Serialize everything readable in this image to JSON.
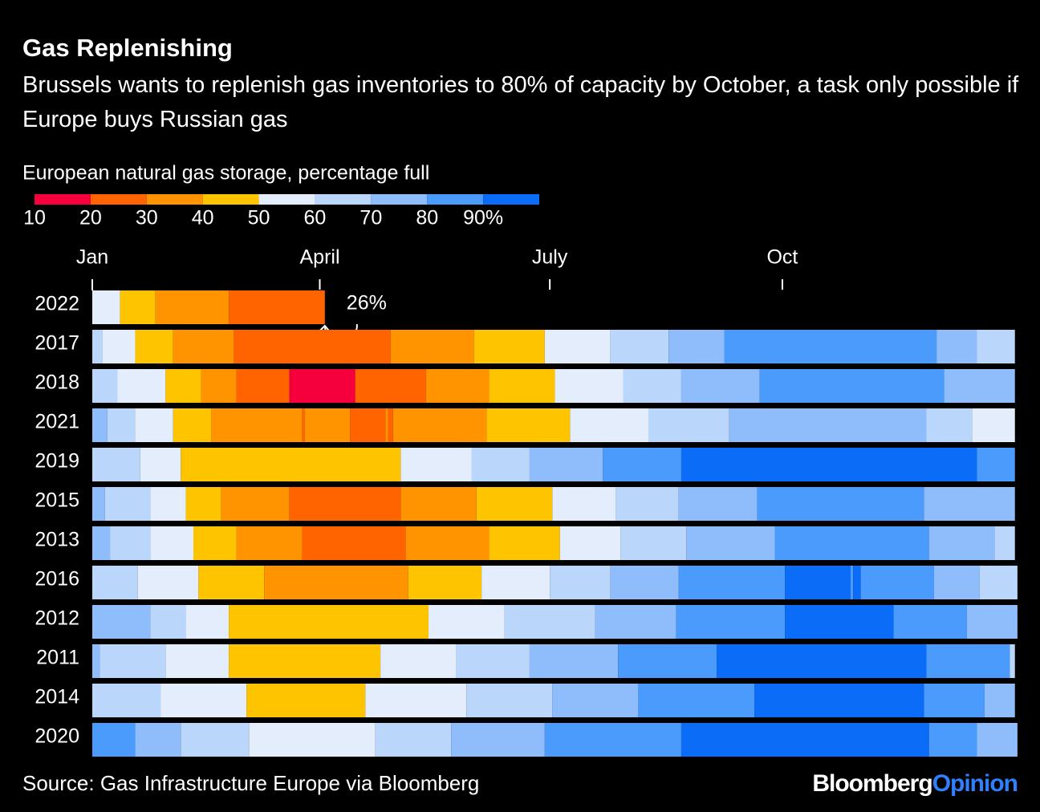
{
  "chart_data": {
    "type": "heatmap",
    "title": "Gas Replenishing",
    "subtitle": "Brussels wants to replenish gas inventories to 80% of capacity by October, a task only possible if Europe buys Russian gas",
    "legend_title": "European natural gas storage, percentage full",
    "color_lim": [
      10,
      100
    ],
    "color_ticks": [
      10,
      20,
      30,
      40,
      50,
      60,
      70,
      80,
      {
        "value": 90,
        "label": "90%"
      }
    ],
    "colors": [
      "#f5003d",
      "#ff6400",
      "#ff9300",
      "#ffc400",
      "#e3edfb",
      "#bbd6fb",
      "#8fbdfb",
      "#4b9bfd",
      "#0a6cf7"
    ],
    "xlim": [
      0,
      366
    ],
    "xticks": [
      {
        "value": 0,
        "label": "Jan"
      },
      {
        "value": 90,
        "label": "April"
      },
      {
        "value": 181,
        "label": "July"
      },
      {
        "value": 273,
        "label": "Oct"
      }
    ],
    "series": [
      {
        "name": "2022",
        "bins": [
          0,
          11,
          25,
          54,
          92
        ],
        "values": [
          50,
          40,
          30,
          20
        ]
      },
      {
        "name": "2017",
        "bins": [
          0,
          4,
          17,
          32,
          56,
          118,
          151,
          179,
          205,
          228,
          250,
          334,
          350,
          365
        ],
        "values": [
          60,
          50,
          40,
          30,
          20,
          30,
          40,
          50,
          60,
          70,
          80,
          70,
          60
        ]
      },
      {
        "name": "2018",
        "bins": [
          0,
          10,
          29,
          43,
          57,
          78,
          104,
          132,
          157,
          183,
          210,
          233,
          264,
          337,
          365
        ],
        "values": [
          60,
          50,
          40,
          30,
          20,
          10,
          20,
          30,
          40,
          50,
          60,
          70,
          80,
          70
        ]
      },
      {
        "name": "2021",
        "bins": [
          0,
          6,
          17,
          32,
          47,
          83,
          84,
          102,
          116,
          117,
          119,
          156,
          189,
          220,
          252,
          330,
          348,
          365
        ],
        "values": [
          70,
          60,
          50,
          40,
          30,
          20,
          30,
          20,
          30,
          20,
          30,
          40,
          50,
          60,
          70,
          60,
          50
        ]
      },
      {
        "name": "2019",
        "bins": [
          0,
          19,
          35,
          122,
          150,
          173,
          202,
          233,
          350,
          365
        ],
        "values": [
          60,
          50,
          40,
          50,
          60,
          70,
          80,
          90,
          80
        ]
      },
      {
        "name": "2015",
        "bins": [
          0,
          5,
          23,
          37,
          51,
          78,
          122,
          152,
          182,
          207,
          232,
          263,
          329,
          365
        ],
        "values": [
          70,
          60,
          50,
          40,
          30,
          20,
          30,
          40,
          50,
          60,
          70,
          80,
          70
        ]
      },
      {
        "name": "2013",
        "bins": [
          0,
          7,
          23,
          40,
          57,
          83,
          124,
          157,
          185,
          209,
          235,
          270,
          331,
          357,
          365
        ],
        "values": [
          70,
          60,
          50,
          40,
          30,
          20,
          30,
          40,
          50,
          60,
          70,
          80,
          70,
          60
        ]
      },
      {
        "name": "2016",
        "bins": [
          0,
          18,
          42,
          68,
          125,
          154,
          181,
          205,
          232,
          274,
          300,
          301,
          304,
          333,
          351,
          366
        ],
        "values": [
          60,
          50,
          40,
          30,
          40,
          50,
          60,
          70,
          80,
          90,
          80,
          90,
          80,
          70,
          60
        ]
      },
      {
        "name": "2012",
        "bins": [
          0,
          23,
          37,
          54,
          133,
          163,
          199,
          231,
          274,
          317,
          346,
          366
        ],
        "values": [
          70,
          60,
          50,
          40,
          50,
          60,
          70,
          80,
          90,
          80,
          70
        ]
      },
      {
        "name": "2011",
        "bins": [
          0,
          3,
          29,
          54,
          114,
          144,
          173,
          208,
          247,
          330,
          363,
          365
        ],
        "values": [
          70,
          60,
          50,
          40,
          50,
          60,
          70,
          80,
          90,
          80,
          60
        ]
      },
      {
        "name": "2014",
        "bins": [
          0,
          27,
          61,
          108,
          148,
          182,
          216,
          262,
          329,
          353,
          365
        ],
        "values": [
          60,
          50,
          40,
          50,
          60,
          70,
          80,
          90,
          80,
          70
        ]
      },
      {
        "name": "2020",
        "bins": [
          0,
          17,
          35,
          62,
          112,
          142,
          179,
          233,
          331,
          350,
          366
        ],
        "values": [
          80,
          70,
          60,
          50,
          60,
          70,
          80,
          90,
          80,
          70
        ]
      }
    ],
    "annotations": [
      {
        "text": "26%"
      }
    ],
    "source": "Source: Gas Infrastructure Europe via Bloomberg",
    "brand": [
      "Bloomberg",
      "Opinion"
    ]
  }
}
